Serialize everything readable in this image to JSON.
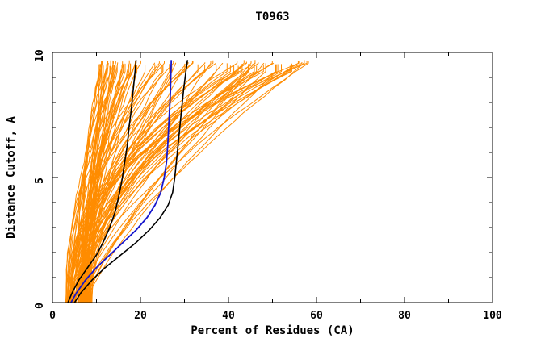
{
  "chart_data": {
    "type": "line",
    "title": "T0963",
    "xlabel": "Percent of Residues (CA)",
    "ylabel": "Distance Cutoff, A",
    "xlim": [
      0,
      100
    ],
    "ylim": [
      0,
      10
    ],
    "xticks_major": [
      0,
      20,
      40,
      60,
      80,
      100
    ],
    "xticks_minor": [
      10,
      30,
      50,
      70,
      90
    ],
    "yticks_major": [
      0,
      5,
      10
    ],
    "yticks_minor": [
      1,
      2,
      3,
      4,
      6,
      7,
      8,
      9
    ],
    "grid": false,
    "legend": "none",
    "axis_color": "#000000",
    "background_color": "#ffffff",
    "series": [
      {
        "name": "model-black-left",
        "color": "#000000",
        "width": 1.6,
        "points": [
          [
            3.5,
            0
          ],
          [
            4.5,
            0.4
          ],
          [
            6,
            0.9
          ],
          [
            8,
            1.4
          ],
          [
            10,
            1.9
          ],
          [
            11.5,
            2.4
          ],
          [
            13,
            3.0
          ],
          [
            14.2,
            3.6
          ],
          [
            15,
            4.2
          ],
          [
            15.8,
            4.9
          ],
          [
            16.4,
            5.6
          ],
          [
            17,
            6.3
          ],
          [
            17.4,
            7.0
          ],
          [
            17.9,
            7.7
          ],
          [
            18.3,
            8.4
          ],
          [
            18.7,
            9.1
          ],
          [
            19,
            9.7
          ]
        ]
      },
      {
        "name": "model-black-right",
        "color": "#000000",
        "width": 1.6,
        "points": [
          [
            5,
            0
          ],
          [
            6.5,
            0.4
          ],
          [
            9,
            0.9
          ],
          [
            12,
            1.4
          ],
          [
            15.5,
            1.9
          ],
          [
            19,
            2.4
          ],
          [
            22,
            2.9
          ],
          [
            24.5,
            3.4
          ],
          [
            26.3,
            3.9
          ],
          [
            27.3,
            4.4
          ],
          [
            27.8,
            5.0
          ],
          [
            28.2,
            5.7
          ],
          [
            28.6,
            6.4
          ],
          [
            29,
            7.1
          ],
          [
            29.4,
            7.8
          ],
          [
            29.8,
            8.5
          ],
          [
            30.3,
            9.2
          ],
          [
            30.7,
            9.7
          ]
        ]
      },
      {
        "name": "model-blue",
        "color": "#1515cc",
        "width": 1.8,
        "points": [
          [
            4.2,
            0
          ],
          [
            5.5,
            0.4
          ],
          [
            7.5,
            0.9
          ],
          [
            10,
            1.4
          ],
          [
            13,
            1.9
          ],
          [
            16,
            2.4
          ],
          [
            19,
            2.9
          ],
          [
            21.5,
            3.4
          ],
          [
            23.3,
            3.9
          ],
          [
            24.6,
            4.4
          ],
          [
            25.4,
            5.0
          ],
          [
            25.9,
            5.6
          ],
          [
            26.2,
            6.3
          ],
          [
            26.4,
            7.0
          ],
          [
            26.6,
            7.7
          ],
          [
            26.8,
            8.4
          ],
          [
            26.9,
            9.1
          ],
          [
            27,
            9.7
          ]
        ]
      }
    ],
    "ensemble": {
      "name": "orange-model-curves",
      "color": "#ff8c00",
      "count": 100,
      "seed": 17,
      "start_x_range": [
        3,
        9
      ],
      "end_x_range": [
        11,
        60
      ],
      "end_x_skew": 1.6,
      "shape_exp_range": [
        1.2,
        2.6
      ],
      "y_top": 9.7,
      "wiggle": 0.9,
      "line_width": 1
    }
  }
}
